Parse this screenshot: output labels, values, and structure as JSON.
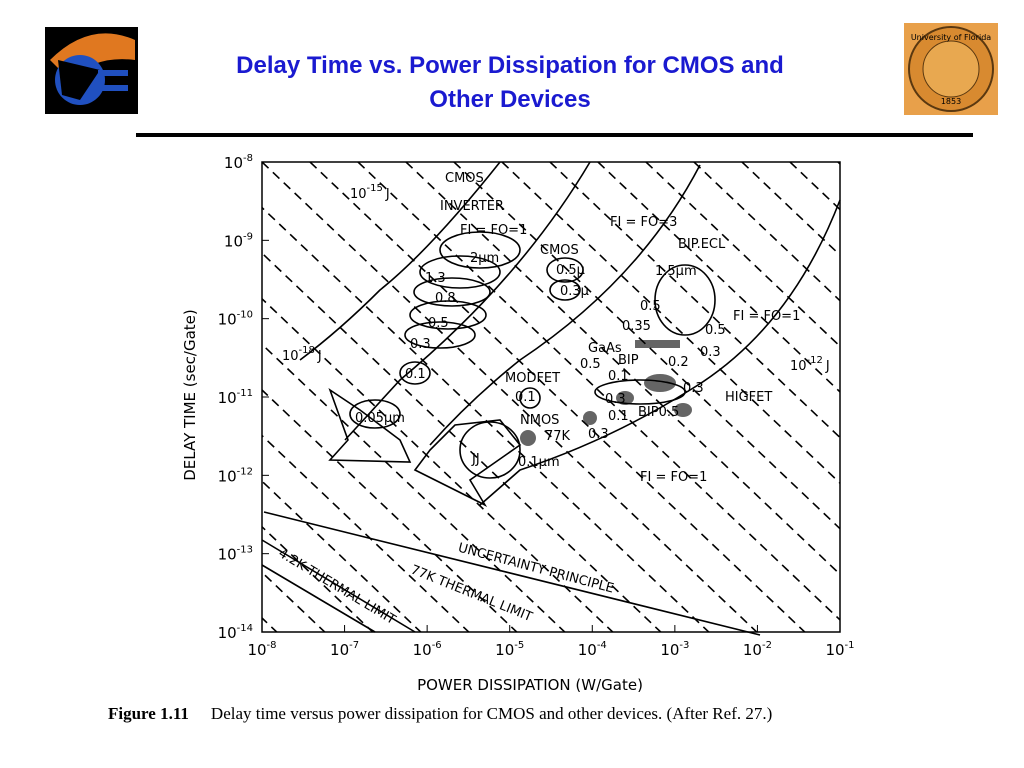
{
  "header": {
    "title_line1": "Delay Time vs. Power Dissipation for CMOS and",
    "title_line2": "Other Devices",
    "seal_text": "University of Florida",
    "seal_year": "1853"
  },
  "figure": {
    "y_axis": {
      "label": "DELAY TIME (sec/Gate)",
      "ticks": [
        {
          "base": "10",
          "exponent": "-8"
        },
        {
          "base": "10",
          "exponent": "-9"
        },
        {
          "base": "10",
          "exponent": "-10"
        },
        {
          "base": "10",
          "exponent": "-11"
        },
        {
          "base": "10",
          "exponent": "-12"
        },
        {
          "base": "10",
          "exponent": "-13"
        },
        {
          "base": "10",
          "exponent": "-14"
        }
      ]
    },
    "x_axis": {
      "label": "POWER DISSIPATION (W/Gate)",
      "ticks": [
        {
          "base": "10",
          "exponent": "-8"
        },
        {
          "base": "10",
          "exponent": "-7"
        },
        {
          "base": "10",
          "exponent": "-6"
        },
        {
          "base": "10",
          "exponent": "-5"
        },
        {
          "base": "10",
          "exponent": "-4"
        },
        {
          "base": "10",
          "exponent": "-3"
        },
        {
          "base": "10",
          "exponent": "-2"
        },
        {
          "base": "10",
          "exponent": "-1"
        }
      ]
    },
    "energy_labels": [
      {
        "base": "10",
        "exponent": "-15",
        "unit": "J"
      },
      {
        "base": "10",
        "exponent": "-18",
        "unit": "J"
      },
      {
        "base": "10",
        "exponent": "-12",
        "unit": "J"
      }
    ],
    "annotations": [
      "CMOS",
      "INVERTER",
      "FI = FO=1",
      "2μm",
      "1.3",
      "0.8",
      "0.5",
      "0.3",
      "0.1",
      "0.05μm",
      "CMOS",
      "0.5μ",
      "0.3μ",
      "FI = FO=3",
      "BIP.ECL",
      "1.5μm",
      "0.5",
      "0.35",
      "0.5",
      "0.3",
      "FI = FO=1",
      "GaAs",
      "0.5",
      "BIP",
      "0.2",
      "0.1",
      "0.3",
      "0.3",
      "0.1",
      "BIP0.5",
      "HIGFET",
      "MODFET",
      "0.1",
      "NMOS",
      "77K",
      "0.3",
      "JJ",
      "0.1μm",
      "FI = FO=1"
    ],
    "limits": [
      "UNCERTAINTY PRINCIPLE",
      "77K THERMAL LIMIT",
      "4.2K THERMAL LIMIT"
    ]
  },
  "caption": {
    "label": "Figure 1.11",
    "text": "Delay time versus power dissipation for CMOS and other devices. (After Ref. 27.)"
  }
}
